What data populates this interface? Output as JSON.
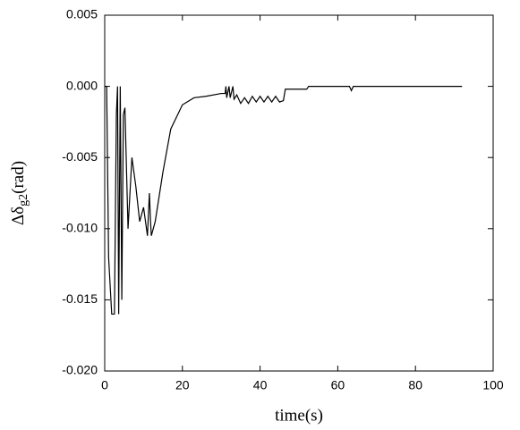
{
  "chart_data": {
    "type": "line",
    "xlabel": "time(s)",
    "ylabel": "Δδ",
    "ylabel_subscript": "g2",
    "ylabel_unit": "(rad)",
    "xlim": [
      0,
      100
    ],
    "xticks": [
      0,
      20,
      40,
      60,
      80,
      100
    ],
    "ylim": [
      -0.02,
      0.005
    ],
    "yticks": [
      {
        "value": -0.02,
        "label": "-0.020"
      },
      -0.015,
      {
        "value": -0.01,
        "label": "-0.010"
      },
      -0.005,
      {
        "value": 0,
        "label": "0.000"
      },
      0.005
    ],
    "series": [
      {
        "color": "#000000",
        "x": [
          0,
          0.5,
          1,
          1.8,
          2.5,
          3,
          3.3,
          3.6,
          4,
          4.4,
          4.8,
          5.2,
          6,
          7,
          8,
          9,
          10,
          11,
          11.5,
          11.8,
          12,
          13,
          15,
          17,
          20,
          23,
          26,
          30,
          31,
          31.2,
          31.4,
          32,
          32.3,
          33,
          33.3,
          34,
          35,
          36,
          37,
          38,
          39,
          40,
          41,
          42,
          43,
          44,
          45,
          46,
          46.5,
          48,
          52,
          52.5,
          63,
          63.5,
          64,
          92
        ],
        "values": [
          0,
          0,
          -0.012,
          -0.016,
          -0.016,
          -0.002,
          0,
          -0.016,
          0,
          -0.015,
          -0.002,
          -0.0015,
          -0.01,
          -0.005,
          -0.007,
          -0.0095,
          -0.0085,
          -0.0105,
          -0.0075,
          -0.0095,
          -0.0105,
          -0.0095,
          -0.006,
          -0.003,
          -0.0013,
          -0.0008,
          -0.0007,
          -0.0005,
          -0.0005,
          0,
          -0.0008,
          0,
          -0.0008,
          0,
          -0.0009,
          -0.0006,
          -0.0012,
          -0.0008,
          -0.0012,
          -0.0007,
          -0.0011,
          -0.0007,
          -0.0011,
          -0.0007,
          -0.0011,
          -0.0007,
          -0.0011,
          -0.001,
          -0.0002,
          -0.0002,
          -0.0002,
          0,
          0,
          -0.0003,
          0,
          0
        ]
      }
    ]
  }
}
